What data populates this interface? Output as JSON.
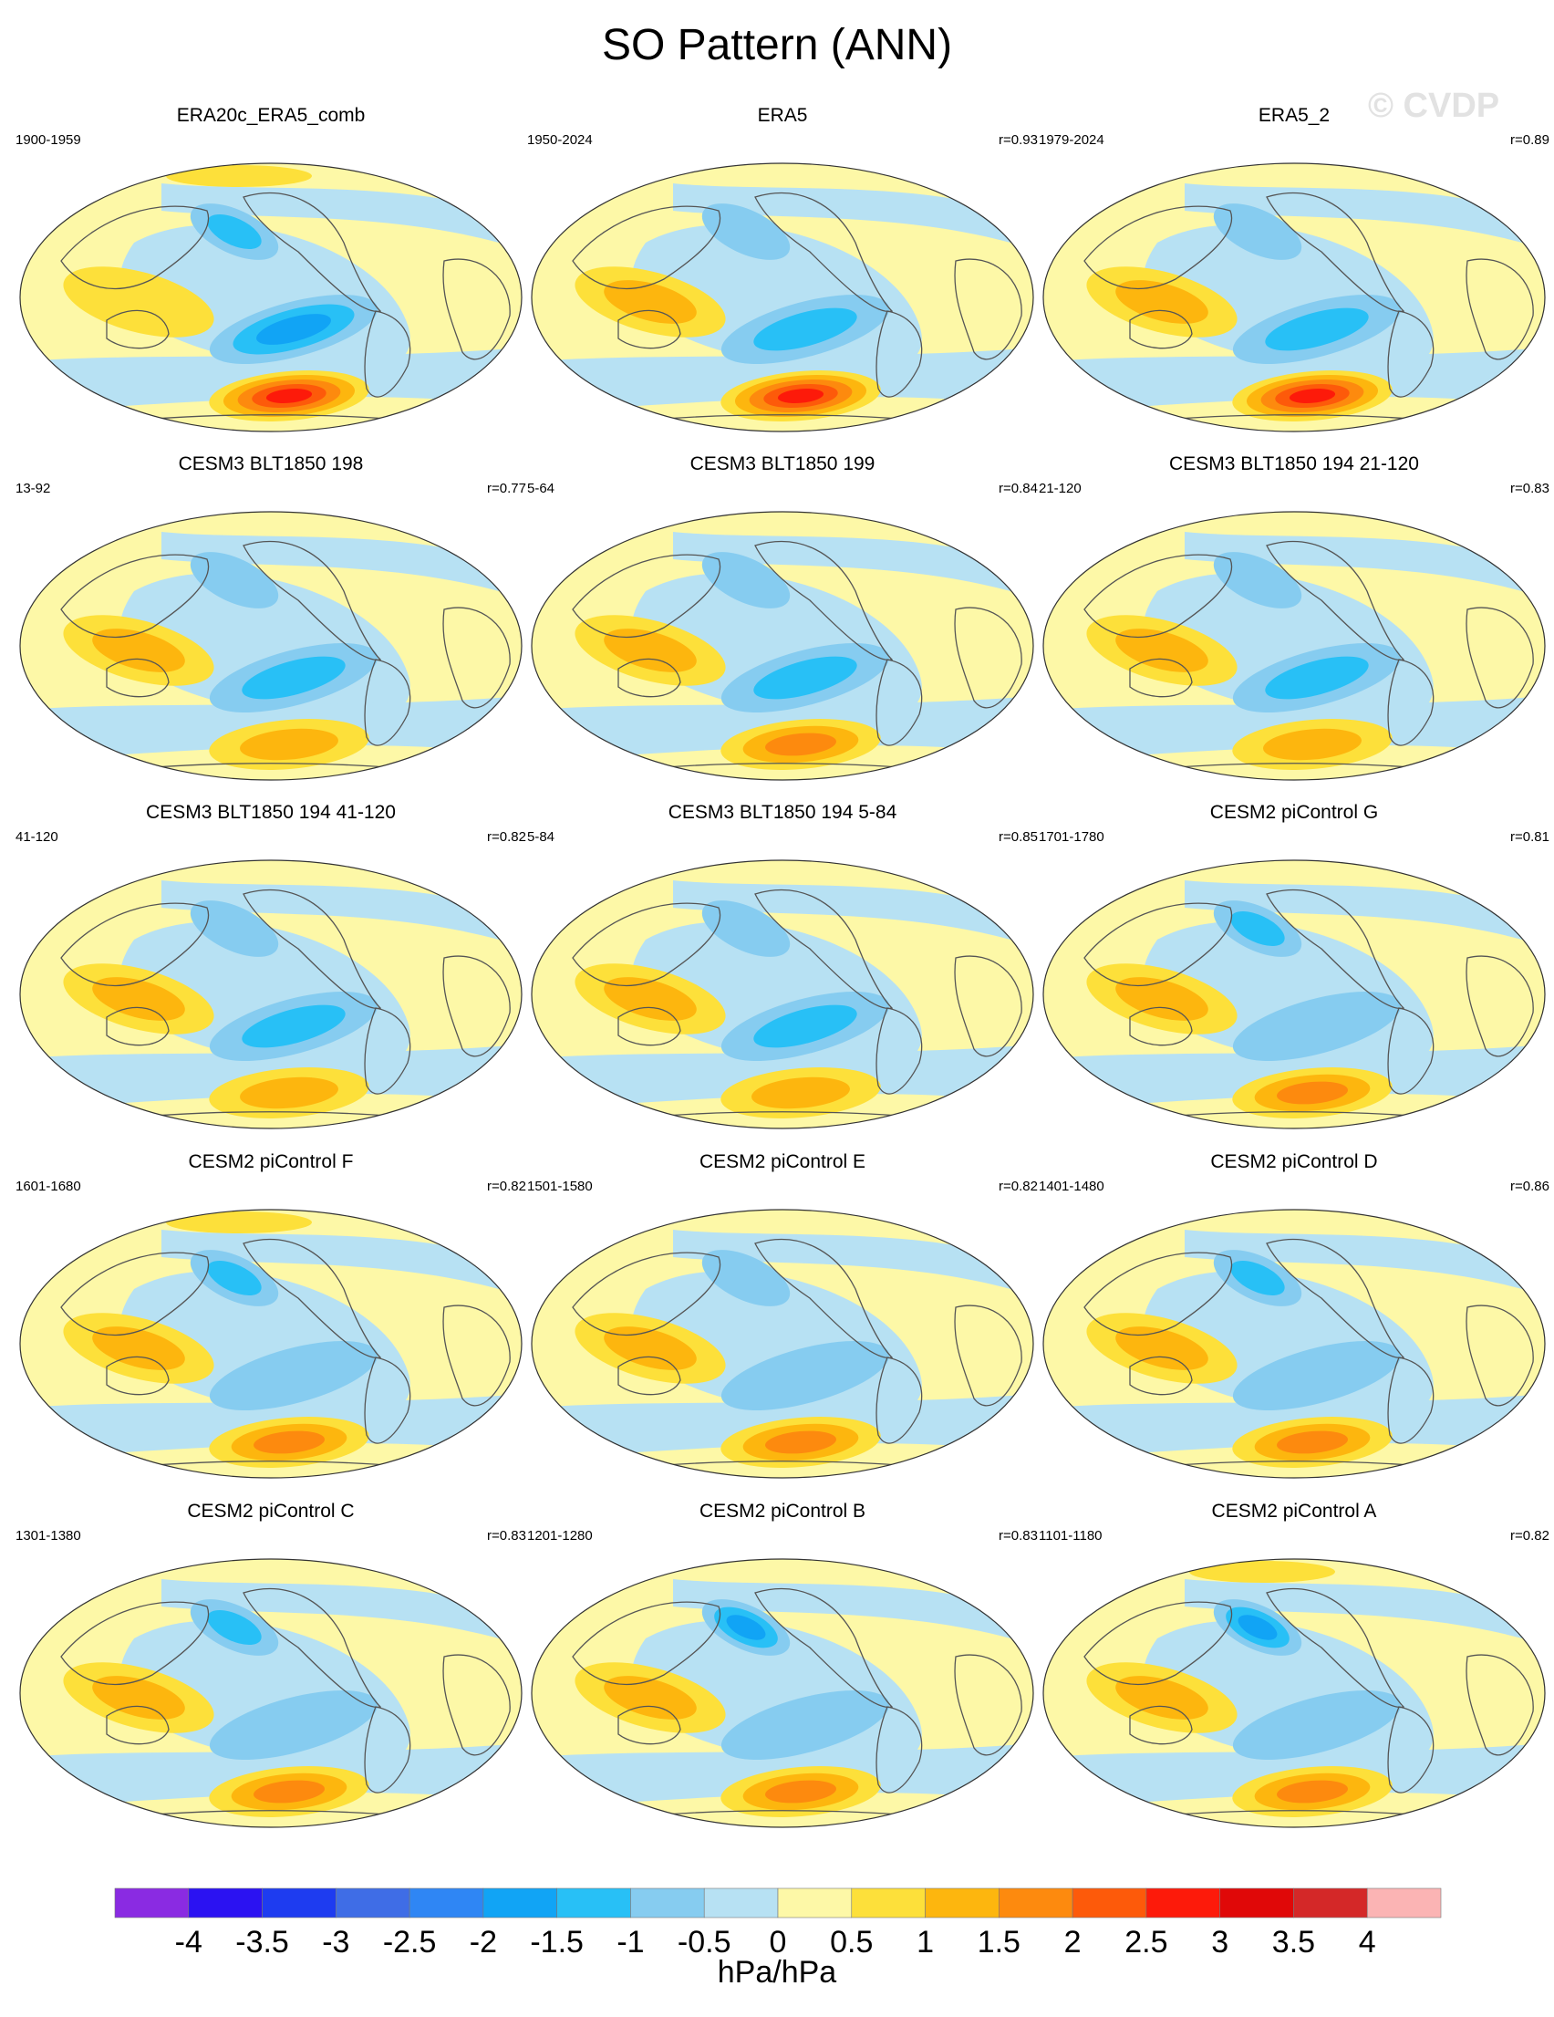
{
  "page": {
    "title": "SO Pattern (ANN)",
    "watermark": "© CVDP"
  },
  "chart_data": {
    "type": "heatmap",
    "title": "SO Pattern (ANN)",
    "variable_units": "hPa/hPa",
    "projection": "Robinson (Pacific-centered)",
    "colorbar": {
      "label": "hPa/hPa",
      "ticks": [
        "-4",
        "-3.5",
        "-3",
        "-2.5",
        "-2",
        "-1.5",
        "-1",
        "-0.5",
        "0",
        "0.5",
        "1",
        "1.5",
        "2",
        "2.5",
        "3",
        "3.5",
        "4"
      ],
      "colors": [
        "#8a2be2",
        "#2b12f2",
        "#1e3cf0",
        "#3f6de6",
        "#2f86f4",
        "#11a4f5",
        "#28c0f6",
        "#86ccf0",
        "#b7e1f3",
        "#fdf8a7",
        "#fde03a",
        "#fdb60e",
        "#fd8a0e",
        "#fd5a0a",
        "#fd1a0a",
        "#e00808",
        "#d42828",
        "#fbb4b4"
      ]
    },
    "panels": [
      {
        "title": "ERA20c_ERA5_comb",
        "years": "1900-1959",
        "r": "",
        "nh": -1.0,
        "nz": -1.5,
        "so": 2.5,
        "au": 0.9,
        "arctic": 0.6
      },
      {
        "title": "ERA5",
        "years": "1950-2024",
        "r": "r=0.93",
        "nh": -0.6,
        "nz": -1.2,
        "so": 2.5,
        "au": 1.0,
        "arctic": 0.3
      },
      {
        "title": "ERA5_2",
        "years": "1979-2024",
        "r": "r=0.89",
        "nh": -0.6,
        "nz": -1.0,
        "so": 2.5,
        "au": 1.0,
        "arctic": 0.3
      },
      {
        "title": "CESM3 BLT1850 198",
        "years": "13-92",
        "r": "r=0.77",
        "nh": -0.6,
        "nz": -1.1,
        "so": 1.3,
        "au": 1.0,
        "arctic": 0.3
      },
      {
        "title": "CESM3 BLT1850 199",
        "years": "5-64",
        "r": "r=0.84",
        "nh": -0.6,
        "nz": -1.1,
        "so": 1.6,
        "au": 1.0,
        "arctic": 0.3
      },
      {
        "title": "CESM3 BLT1850 194 21-120",
        "years": "21-120",
        "r": "r=0.83",
        "nh": -0.6,
        "nz": -1.1,
        "so": 1.3,
        "au": 1.0,
        "arctic": 0.3
      },
      {
        "title": "CESM3 BLT1850 194 41-120",
        "years": "41-120",
        "r": "r=0.82",
        "nh": -0.6,
        "nz": -1.1,
        "so": 1.2,
        "au": 1.0,
        "arctic": 0.3
      },
      {
        "title": "CESM3 BLT1850 194 5-84",
        "years": "5-84",
        "r": "r=0.85",
        "nh": -0.6,
        "nz": -1.1,
        "so": 1.4,
        "au": 1.0,
        "arctic": 0.3
      },
      {
        "title": "CESM2 piControl G",
        "years": "1701-1780",
        "r": "r=0.81",
        "nh": -1.1,
        "nz": -0.6,
        "so": 1.7,
        "au": 1.0,
        "arctic": 0.3
      },
      {
        "title": "CESM2 piControl F",
        "years": "1601-1680",
        "r": "r=0.82",
        "nh": -1.1,
        "nz": -0.6,
        "so": 1.6,
        "au": 1.0,
        "arctic": 0.6
      },
      {
        "title": "CESM2 piControl E",
        "years": "1501-1580",
        "r": "r=0.82",
        "nh": -0.8,
        "nz": -0.6,
        "so": 1.6,
        "au": 1.0,
        "arctic": 0.3
      },
      {
        "title": "CESM2 piControl D",
        "years": "1401-1480",
        "r": "r=0.86",
        "nh": -1.3,
        "nz": -0.6,
        "so": 1.6,
        "au": 1.0,
        "arctic": 0.3
      },
      {
        "title": "CESM2 piControl C",
        "years": "1301-1380",
        "r": "r=0.83",
        "nh": -1.1,
        "nz": -0.6,
        "so": 1.6,
        "au": 1.0,
        "arctic": 0.3
      },
      {
        "title": "CESM2 piControl B",
        "years": "1201-1280",
        "r": "r=0.83",
        "nh": -1.6,
        "nz": -0.6,
        "so": 1.7,
        "au": 1.0,
        "arctic": 0.3
      },
      {
        "title": "CESM2 piControl A",
        "years": "1101-1180",
        "r": "r=0.82",
        "nh": -1.6,
        "nz": -0.6,
        "so": 1.6,
        "au": 1.0,
        "arctic": 0.6
      }
    ]
  }
}
